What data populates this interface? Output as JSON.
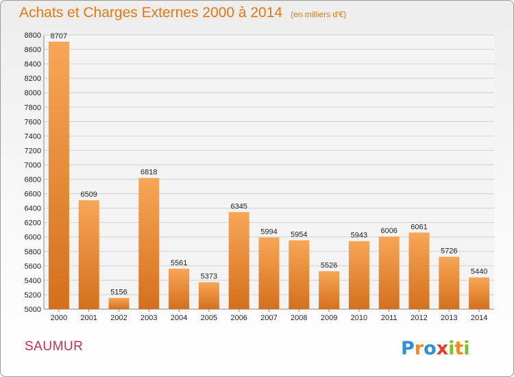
{
  "header": {
    "title": "Achats et Charges Externes 2000 à 2014",
    "subtitle": "(en milliers d'€)"
  },
  "footer": {
    "city": "SAUMUR",
    "logo_text": "Proxiti"
  },
  "colors": {
    "title": "#e8780f",
    "bar_light": "#f7a657",
    "bar_dark": "#d4701c",
    "city": "#c6304d",
    "grid": "#cfcfcf"
  },
  "chart_data": {
    "type": "bar",
    "categories": [
      "2000",
      "2001",
      "2002",
      "2003",
      "2004",
      "2005",
      "2006",
      "2007",
      "2008",
      "2009",
      "2010",
      "2011",
      "2012",
      "2013",
      "2014"
    ],
    "values": [
      8707,
      6509,
      5156,
      6818,
      5561,
      5373,
      6345,
      5994,
      5954,
      5526,
      5943,
      6006,
      6061,
      5726,
      5440
    ],
    "data_labels": [
      "8707",
      "6509",
      "5156",
      "6818",
      "5561",
      "5373",
      "6345",
      "5994",
      "5954",
      "5526",
      "5943",
      "6006",
      "6061",
      "5726",
      "5440"
    ],
    "ylim": [
      5000,
      8800
    ],
    "yticks": [
      5000,
      5200,
      5400,
      5600,
      5800,
      6000,
      6200,
      6400,
      6600,
      6800,
      7000,
      7200,
      7400,
      7600,
      7800,
      8000,
      8200,
      8400,
      8600,
      8800
    ],
    "grid": true
  }
}
